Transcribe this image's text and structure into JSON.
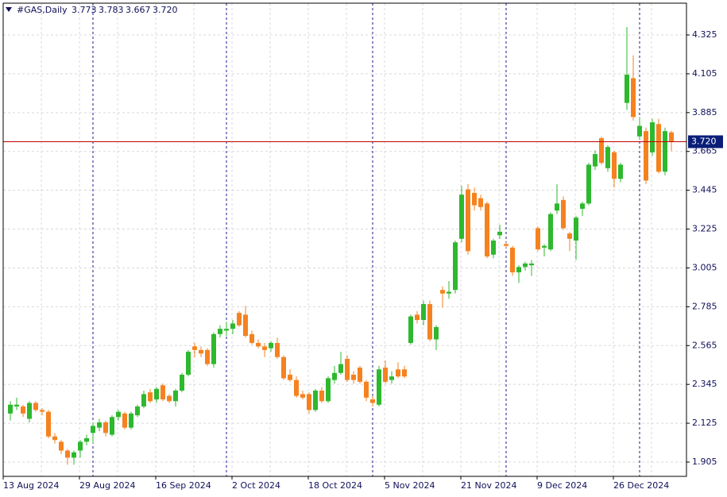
{
  "chart_data": {
    "type": "candlestick",
    "title": "#GAS,Daily",
    "header_values": [
      "3.773",
      "3.783",
      "3.667",
      "3.720"
    ],
    "categories": [
      "13 Aug 2024",
      null,
      null,
      null,
      null,
      null,
      null,
      null,
      null,
      null,
      null,
      null,
      "29 Aug 2024",
      null,
      null,
      null,
      null,
      null,
      null,
      null,
      null,
      null,
      null,
      null,
      "16 Sep 2024",
      null,
      null,
      null,
      null,
      null,
      null,
      null,
      null,
      null,
      null,
      null,
      "2 Oct 2024",
      null,
      null,
      null,
      null,
      null,
      null,
      null,
      null,
      null,
      null,
      null,
      "18 Oct 2024",
      null,
      null,
      null,
      null,
      null,
      null,
      null,
      null,
      null,
      null,
      null,
      "5 Nov 2024",
      null,
      null,
      null,
      null,
      null,
      null,
      null,
      null,
      null,
      null,
      null,
      "21 Nov 2024",
      null,
      null,
      null,
      null,
      null,
      null,
      null,
      null,
      null,
      null,
      null,
      "9 Dec 2024",
      null,
      null,
      null,
      null,
      null,
      null,
      null,
      null,
      null,
      null,
      null,
      "26 Dec 2024",
      null,
      null,
      null,
      null,
      null,
      null,
      null,
      null
    ],
    "open": [
      2.18,
      2.22,
      2.22,
      2.15,
      2.24,
      2.2,
      2.19,
      2.05,
      2.02,
      1.97,
      1.93,
      1.97,
      2.02,
      2.07,
      2.1,
      2.13,
      2.06,
      2.16,
      2.18,
      2.1,
      2.17,
      2.22,
      2.3,
      2.26,
      2.34,
      2.28,
      2.25,
      2.31,
      2.4,
      2.56,
      2.54,
      2.54,
      2.46,
      2.63,
      2.65,
      2.66,
      2.75,
      2.74,
      2.63,
      2.58,
      2.56,
      2.55,
      2.58,
      2.5,
      2.4,
      2.37,
      2.29,
      2.29,
      2.2,
      2.31,
      2.25,
      2.37,
      2.41,
      2.49,
      2.4,
      2.44,
      2.36,
      2.26,
      2.23,
      2.44,
      2.37,
      2.43,
      2.43,
      2.58,
      2.74,
      2.71,
      2.8,
      2.6,
      2.88,
      2.86,
      2.88,
      3.17,
      3.45,
      3.43,
      3.4,
      3.37,
      3.08,
      3.19,
      3.14,
      3.12,
      2.98,
      3.01,
      3.02,
      3.23,
      3.12,
      3.11,
      3.33,
      3.39,
      3.2,
      3.16,
      3.34,
      3.37,
      3.58,
      3.74,
      3.57,
      3.66,
      3.51,
      3.94,
      4.08,
      3.75,
      3.78,
      3.66,
      3.82,
      3.55,
      3.773
    ],
    "high": [
      2.25,
      2.27,
      2.23,
      2.25,
      2.25,
      2.21,
      2.2,
      2.07,
      2.03,
      1.98,
      1.97,
      2.03,
      2.06,
      2.13,
      2.15,
      2.14,
      2.17,
      2.2,
      2.19,
      2.19,
      2.23,
      2.31,
      2.32,
      2.33,
      2.35,
      2.29,
      2.32,
      2.41,
      2.54,
      2.58,
      2.56,
      2.55,
      2.64,
      2.68,
      2.7,
      2.71,
      2.76,
      2.79,
      2.65,
      2.6,
      2.58,
      2.59,
      2.61,
      2.51,
      2.43,
      2.39,
      2.31,
      2.3,
      2.32,
      2.33,
      2.39,
      2.45,
      2.53,
      2.51,
      2.42,
      2.45,
      2.37,
      2.28,
      2.45,
      2.48,
      2.42,
      2.47,
      2.45,
      2.74,
      2.76,
      2.82,
      2.82,
      2.68,
      2.9,
      2.93,
      3.16,
      3.47,
      3.48,
      3.46,
      3.42,
      3.38,
      3.17,
      3.25,
      3.15,
      3.13,
      3.02,
      3.04,
      3.05,
      3.24,
      3.14,
      3.32,
      3.48,
      3.41,
      3.21,
      3.3,
      3.38,
      3.6,
      3.67,
      3.75,
      3.7,
      3.67,
      3.6,
      4.37,
      4.21,
      3.86,
      3.8,
      3.85,
      3.85,
      3.8,
      3.783
    ],
    "low": [
      2.14,
      2.2,
      2.16,
      2.13,
      2.19,
      2.17,
      2.04,
      2.01,
      1.95,
      1.89,
      1.89,
      1.93,
      2.0,
      2.01,
      2.08,
      2.05,
      2.05,
      2.14,
      2.09,
      2.09,
      2.16,
      2.21,
      2.24,
      2.24,
      2.25,
      2.24,
      2.22,
      2.3,
      2.39,
      2.5,
      2.5,
      2.45,
      2.44,
      2.61,
      2.62,
      2.63,
      2.67,
      2.61,
      2.57,
      2.55,
      2.5,
      2.53,
      2.49,
      2.37,
      2.36,
      2.27,
      2.26,
      2.18,
      2.19,
      2.24,
      2.24,
      2.35,
      2.4,
      2.36,
      2.35,
      2.35,
      2.25,
      2.22,
      2.22,
      2.35,
      2.35,
      2.38,
      2.38,
      2.57,
      2.69,
      2.68,
      2.59,
      2.54,
      2.78,
      2.83,
      2.86,
      3.15,
      3.08,
      3.33,
      3.33,
      3.06,
      3.06,
      3.17,
      3.12,
      2.96,
      2.92,
      2.99,
      2.96,
      3.1,
      3.07,
      3.1,
      3.31,
      3.22,
      3.1,
      3.05,
      3.3,
      3.36,
      3.56,
      3.59,
      3.55,
      3.46,
      3.49,
      3.9,
      3.84,
      3.73,
      3.48,
      3.64,
      3.54,
      3.53,
      3.667
    ],
    "close": [
      2.23,
      2.23,
      2.18,
      2.24,
      2.2,
      2.19,
      2.05,
      2.03,
      1.97,
      1.93,
      1.96,
      2.02,
      2.04,
      2.11,
      2.13,
      2.07,
      2.16,
      2.19,
      2.1,
      2.18,
      2.22,
      2.29,
      2.25,
      2.32,
      2.26,
      2.25,
      2.31,
      2.4,
      2.53,
      2.54,
      2.52,
      2.46,
      2.63,
      2.66,
      2.66,
      2.69,
      2.68,
      2.62,
      2.58,
      2.56,
      2.54,
      2.58,
      2.5,
      2.38,
      2.37,
      2.28,
      2.27,
      2.2,
      2.31,
      2.25,
      2.38,
      2.41,
      2.46,
      2.37,
      2.37,
      2.36,
      2.27,
      2.24,
      2.43,
      2.36,
      2.39,
      2.39,
      2.39,
      2.73,
      2.71,
      2.8,
      2.6,
      2.67,
      2.86,
      2.87,
      3.15,
      3.42,
      3.1,
      3.36,
      3.35,
      3.07,
      3.16,
      3.21,
      3.13,
      2.98,
      3.01,
      3.03,
      3.03,
      3.11,
      3.13,
      3.31,
      3.37,
      3.23,
      3.17,
      3.29,
      3.37,
      3.59,
      3.65,
      3.6,
      3.69,
      3.51,
      3.59,
      4.1,
      3.86,
      3.81,
      3.5,
      3.83,
      3.55,
      3.78,
      3.72
    ],
    "up_color": "#2eb82e",
    "down_color": "#f5821f",
    "price_line_color": "#c00000",
    "ylim": [
      1.824,
      4.505
    ],
    "yticks": [
      1.905,
      2.125,
      2.345,
      2.565,
      2.785,
      3.005,
      3.225,
      3.445,
      3.665,
      3.885,
      4.105,
      4.325
    ],
    "grid": true
  }
}
